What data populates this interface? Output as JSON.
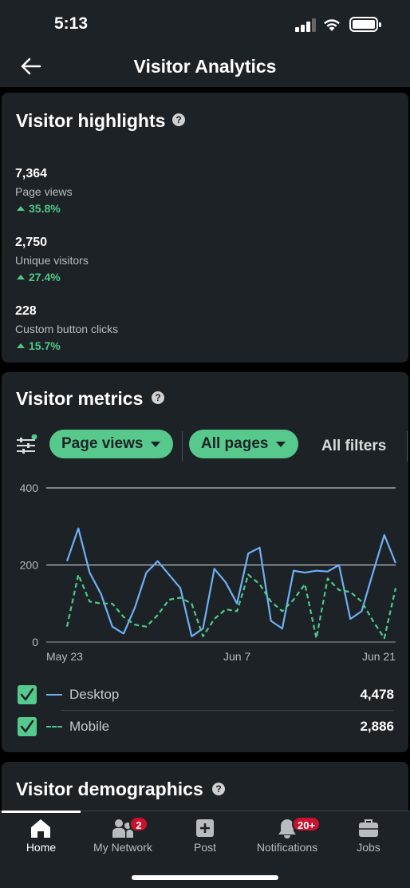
{
  "status_bar": {
    "time": "5:13"
  },
  "header": {
    "title": "Visitor Analytics",
    "back_icon": "arrow-left-icon"
  },
  "highlights": {
    "title": "Visitor highlights",
    "stats": [
      {
        "value": "7,364",
        "label": "Page views",
        "change": "35.8%"
      },
      {
        "value": "2,750",
        "label": "Unique visitors",
        "change": "27.4%"
      },
      {
        "value": "228",
        "label": "Custom button clicks",
        "change": "15.7%"
      }
    ]
  },
  "metrics": {
    "title": "Visitor metrics",
    "filter_metric": "Page views",
    "filter_pages": "All pages",
    "all_filters": "All filters",
    "legend": [
      {
        "label": "Desktop",
        "total": "4,478",
        "color": "#6fb0f5",
        "checked": true
      },
      {
        "label": "Mobile",
        "total": "2,886",
        "color": "#4ec98a",
        "checked": true
      }
    ]
  },
  "chart_data": {
    "type": "line",
    "x": [
      "May 23",
      "May 24",
      "May 25",
      "May 26",
      "May 27",
      "May 28",
      "May 29",
      "May 30",
      "May 31",
      "Jun 1",
      "Jun 2",
      "Jun 3",
      "Jun 4",
      "Jun 5",
      "Jun 6",
      "Jun 7",
      "Jun 8",
      "Jun 9",
      "Jun 10",
      "Jun 11",
      "Jun 12",
      "Jun 13",
      "Jun 14",
      "Jun 15",
      "Jun 16",
      "Jun 17",
      "Jun 18",
      "Jun 19",
      "Jun 20",
      "Jun 21"
    ],
    "x_tick_labels": [
      "May 23",
      "Jun 7",
      "Jun 21"
    ],
    "y_ticks": [
      0,
      200,
      400
    ],
    "ylim": [
      0,
      400
    ],
    "grid": true,
    "series": [
      {
        "name": "Desktop",
        "color": "#6fb0f5",
        "dash": false,
        "values": [
          210,
          295,
          180,
          125,
          40,
          22,
          90,
          180,
          210,
          175,
          140,
          15,
          35,
          190,
          155,
          100,
          230,
          245,
          55,
          35,
          185,
          180,
          185,
          183,
          200,
          60,
          80,
          180,
          278,
          205
        ]
      },
      {
        "name": "Mobile",
        "color": "#4ec98a",
        "dash": true,
        "values": [
          40,
          175,
          105,
          100,
          100,
          65,
          45,
          40,
          70,
          110,
          115,
          100,
          15,
          60,
          85,
          80,
          175,
          150,
          105,
          80,
          110,
          150,
          10,
          165,
          135,
          130,
          105,
          55,
          10,
          140
        ]
      }
    ]
  },
  "demographics": {
    "title": "Visitor demographics"
  },
  "nav": {
    "items": [
      {
        "label": "Home",
        "icon": "home-icon"
      },
      {
        "label": "My Network",
        "icon": "people-icon",
        "badge": "2"
      },
      {
        "label": "Post",
        "icon": "plus-square-icon"
      },
      {
        "label": "Notifications",
        "icon": "bell-icon",
        "badge": "20+"
      },
      {
        "label": "Jobs",
        "icon": "briefcase-icon"
      }
    ]
  }
}
